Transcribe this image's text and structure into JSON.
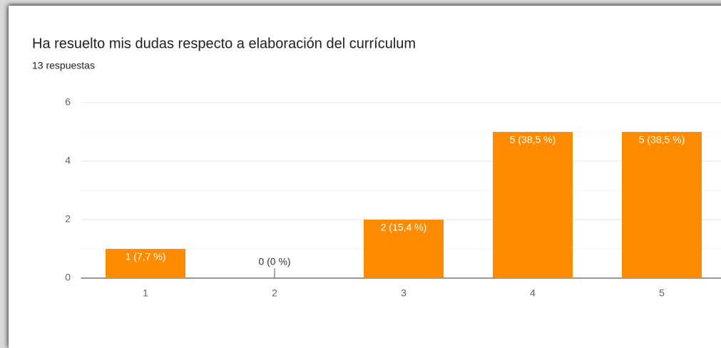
{
  "chart_data": {
    "type": "bar",
    "title": "Ha resuelto mis dudas respecto a elaboración del currículum",
    "subtitle": "13 respuestas",
    "categories": [
      "1",
      "2",
      "3",
      "4",
      "5"
    ],
    "values": [
      1,
      0,
      2,
      5,
      5
    ],
    "value_labels": [
      "1 (7,7 %)",
      "0 (0 %)",
      "2 (15,4 %)",
      "5 (38,5 %)",
      "5 (38,5 %)"
    ],
    "color": "#ff8c00",
    "ylim": [
      0,
      6
    ],
    "yticks": [
      0,
      2,
      4,
      6
    ],
    "minor_yticks": [
      1,
      3,
      5
    ],
    "grid": true
  }
}
